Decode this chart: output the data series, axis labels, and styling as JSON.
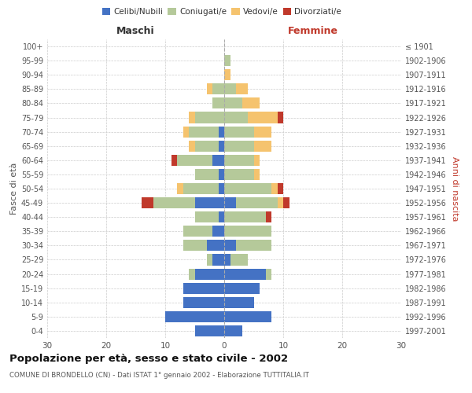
{
  "age_groups": [
    "0-4",
    "5-9",
    "10-14",
    "15-19",
    "20-24",
    "25-29",
    "30-34",
    "35-39",
    "40-44",
    "45-49",
    "50-54",
    "55-59",
    "60-64",
    "65-69",
    "70-74",
    "75-79",
    "80-84",
    "85-89",
    "90-94",
    "95-99",
    "100+"
  ],
  "birth_years": [
    "1997-2001",
    "1992-1996",
    "1987-1991",
    "1982-1986",
    "1977-1981",
    "1972-1976",
    "1967-1971",
    "1962-1966",
    "1957-1961",
    "1952-1956",
    "1947-1951",
    "1942-1946",
    "1937-1941",
    "1932-1936",
    "1927-1931",
    "1922-1926",
    "1917-1921",
    "1912-1916",
    "1907-1911",
    "1902-1906",
    "≤ 1901"
  ],
  "maschi": {
    "celibi": [
      5,
      10,
      7,
      7,
      5,
      2,
      3,
      2,
      1,
      5,
      1,
      1,
      2,
      1,
      1,
      0,
      0,
      0,
      0,
      0,
      0
    ],
    "coniugati": [
      0,
      0,
      0,
      0,
      1,
      1,
      4,
      5,
      4,
      7,
      6,
      4,
      6,
      4,
      5,
      5,
      2,
      2,
      0,
      0,
      0
    ],
    "vedovi": [
      0,
      0,
      0,
      0,
      0,
      0,
      0,
      0,
      0,
      0,
      1,
      0,
      0,
      1,
      1,
      1,
      0,
      1,
      0,
      0,
      0
    ],
    "divorziati": [
      0,
      0,
      0,
      0,
      0,
      0,
      0,
      0,
      0,
      2,
      0,
      0,
      1,
      0,
      0,
      0,
      0,
      0,
      0,
      0,
      0
    ]
  },
  "femmine": {
    "nubili": [
      3,
      8,
      5,
      6,
      7,
      1,
      2,
      0,
      0,
      2,
      0,
      0,
      0,
      0,
      0,
      0,
      0,
      0,
      0,
      0,
      0
    ],
    "coniugate": [
      0,
      0,
      0,
      0,
      1,
      3,
      6,
      8,
      7,
      7,
      8,
      5,
      5,
      5,
      5,
      4,
      3,
      2,
      0,
      1,
      0
    ],
    "vedove": [
      0,
      0,
      0,
      0,
      0,
      0,
      0,
      0,
      0,
      1,
      1,
      1,
      1,
      3,
      3,
      5,
      3,
      2,
      1,
      0,
      0
    ],
    "divorziate": [
      0,
      0,
      0,
      0,
      0,
      0,
      0,
      0,
      1,
      1,
      1,
      0,
      0,
      0,
      0,
      1,
      0,
      0,
      0,
      0,
      0
    ]
  },
  "colors": {
    "celibi": "#4472c4",
    "coniugati": "#b5c99a",
    "vedovi": "#f5c36e",
    "divorziati": "#c0392b"
  },
  "title": "Popolazione per età, sesso e stato civile - 2002",
  "subtitle": "COMUNE DI BRONDELLO (CN) - Dati ISTAT 1° gennaio 2002 - Elaborazione TUTTITALIA.IT",
  "xlabel_left": "Maschi",
  "xlabel_right": "Femmine",
  "ylabel_left": "Fasce di età",
  "ylabel_right": "Anni di nascita",
  "xlim": 30,
  "background_color": "#ffffff",
  "grid_color": "#cccccc"
}
